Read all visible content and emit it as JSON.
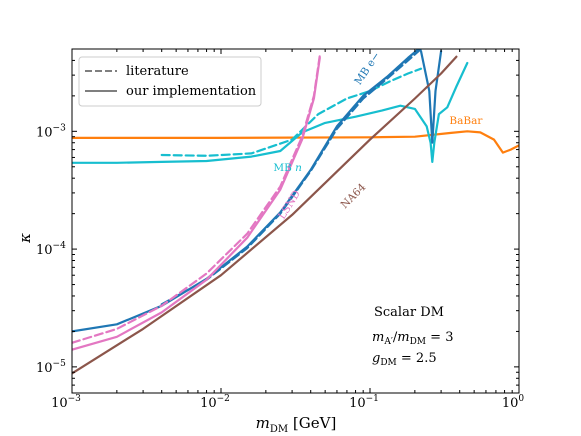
{
  "chart_data": {
    "type": "line",
    "xlabel": "m_DM [GeV]",
    "ylabel": "κ",
    "xscale": "log",
    "yscale": "log",
    "xlim": [
      0.001,
      1.0
    ],
    "ylim": [
      6e-06,
      0.005
    ],
    "x_ticks": [
      {
        "v": 0.001,
        "base": "10",
        "exp": "−3"
      },
      {
        "v": 0.01,
        "base": "10",
        "exp": "−2"
      },
      {
        "v": 0.1,
        "base": "10",
        "exp": "−1"
      },
      {
        "v": 1.0,
        "base": "10",
        "exp": "0"
      }
    ],
    "y_ticks": [
      {
        "v": 1e-05,
        "base": "10",
        "exp": "−5"
      },
      {
        "v": 0.0001,
        "base": "10",
        "exp": "−4"
      },
      {
        "v": 0.001,
        "base": "10",
        "exp": "−3"
      }
    ],
    "legend": {
      "position": "top-left",
      "entries": [
        {
          "label": "literature",
          "style": "dashed"
        },
        {
          "label": "our implementation",
          "style": "solid"
        }
      ]
    },
    "annotation": [
      "Scalar DM",
      "m_A'/m_DM = 3",
      "g_DM = 2.5"
    ],
    "colors": {
      "babar": "#ff7f0e",
      "mb_n": "#17becf",
      "mb_e": "#1f77b4",
      "lsnd": "#e377c2",
      "na64": "#8c564b",
      "legend_line": "#7f7f7f"
    },
    "series": [
      {
        "name": "BaBar",
        "key": "babar",
        "style": "solid",
        "x": [
          0.001,
          0.01,
          0.1,
          0.2,
          0.35,
          0.45,
          0.55,
          0.68,
          0.78,
          0.88,
          1.0
        ],
        "y": [
          0.00088,
          0.00088,
          0.00089,
          0.0009,
          0.00097,
          0.001,
          0.00098,
          0.00085,
          0.00066,
          0.0007,
          0.00076
        ]
      },
      {
        "name": "MB n",
        "key": "mb_n",
        "style": "solid",
        "x": [
          0.001,
          0.002,
          0.004,
          0.008,
          0.016,
          0.025,
          0.035,
          0.05,
          0.08,
          0.12,
          0.16,
          0.2,
          0.24,
          0.255,
          0.262,
          0.27,
          0.29,
          0.33,
          0.38,
          0.45
        ],
        "y": [
          0.00054,
          0.00054,
          0.00055,
          0.00056,
          0.00061,
          0.00068,
          0.00098,
          0.00118,
          0.00133,
          0.0015,
          0.00165,
          0.00155,
          0.0011,
          0.0008,
          0.00055,
          0.0008,
          0.0014,
          0.0016,
          0.0024,
          0.0038
        ]
      },
      {
        "name": "MB n literature",
        "key": "mb_n",
        "style": "dashed",
        "x": [
          0.004,
          0.008,
          0.016,
          0.03,
          0.045,
          0.07,
          0.1,
          0.14,
          0.18,
          0.22
        ],
        "y": [
          0.00063,
          0.00062,
          0.00065,
          0.00085,
          0.0014,
          0.0019,
          0.0022,
          0.0027,
          0.0031,
          0.0034
        ]
      },
      {
        "name": "MB e−",
        "key": "mb_e",
        "style": "solid",
        "x": [
          0.001,
          0.002,
          0.004,
          0.008,
          0.015,
          0.025,
          0.04,
          0.06,
          0.09,
          0.13,
          0.18,
          0.22
        ],
        "y": [
          2e-05,
          2.3e-05,
          3.3e-05,
          5.6e-05,
          0.000105,
          0.000205,
          0.00047,
          0.0011,
          0.002,
          0.0029,
          0.0042,
          0.0052
        ]
      },
      {
        "name": "MB e− literature",
        "key": "mb_e",
        "style": "dashed",
        "x": [
          0.004,
          0.008,
          0.015,
          0.025,
          0.04,
          0.06,
          0.09,
          0.13,
          0.18,
          0.22
        ],
        "y": [
          3.4e-05,
          5.5e-05,
          0.000102,
          0.0002,
          0.00046,
          0.00105,
          0.0019,
          0.0028,
          0.004,
          0.005
        ]
      },
      {
        "name": "MB e− resonance",
        "key": "mb_e",
        "style": "solid",
        "x": [
          0.22,
          0.25,
          0.262,
          0.275,
          0.3
        ],
        "y": [
          0.0048,
          0.0022,
          0.0008,
          0.0022,
          0.0048
        ]
      },
      {
        "name": "LSND",
        "key": "lsnd",
        "style": "solid",
        "x": [
          0.001,
          0.002,
          0.004,
          0.008,
          0.015,
          0.025,
          0.035,
          0.042,
          0.046
        ],
        "y": [
          1.4e-05,
          1.8e-05,
          2.9e-05,
          5.5e-05,
          0.000125,
          0.00032,
          0.00085,
          0.0019,
          0.0042
        ]
      },
      {
        "name": "LSND literature",
        "key": "lsnd",
        "style": "dashed",
        "x": [
          0.001,
          0.002,
          0.004,
          0.008,
          0.015,
          0.025,
          0.035,
          0.042,
          0.046
        ],
        "y": [
          1.6e-05,
          2.1e-05,
          3.3e-05,
          6.2e-05,
          0.000135,
          0.00034,
          0.0009,
          0.002,
          0.0044
        ]
      },
      {
        "name": "NA64",
        "key": "na64",
        "style": "solid",
        "x": [
          0.001,
          0.003,
          0.01,
          0.03,
          0.1,
          0.2,
          0.3,
          0.38
        ],
        "y": [
          8.8e-06,
          2.1e-05,
          6e-05,
          0.000195,
          0.00085,
          0.0019,
          0.0031,
          0.0043
        ]
      }
    ],
    "labels": [
      {
        "text": "BaBar",
        "key": "babar",
        "x": 0.44,
        "y": 0.00115,
        "rotate": 0
      },
      {
        "text": "MB n",
        "key": "mb_n",
        "x": 0.028,
        "y": 0.00046,
        "rotate": 0,
        "italic_suffix": true
      },
      {
        "text": "MB e−",
        "key": "mb_e",
        "x": 0.1,
        "y": 0.0033,
        "rotate": -56
      },
      {
        "text": "LSND",
        "key": "lsnd",
        "x": 0.03,
        "y": 0.00023,
        "rotate": -58
      },
      {
        "text": "NA64",
        "key": "na64",
        "x": 0.08,
        "y": 0.00027,
        "rotate": -45
      }
    ]
  }
}
